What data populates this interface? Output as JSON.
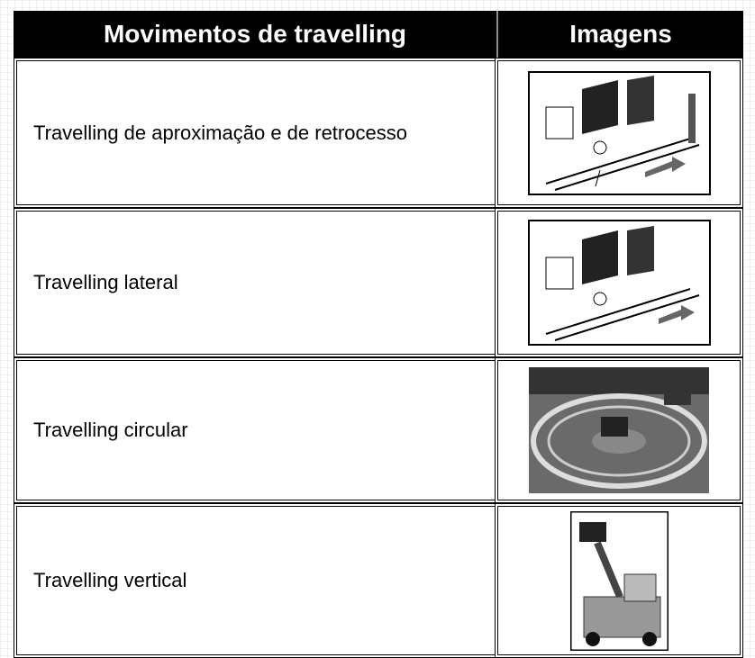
{
  "table": {
    "header": [
      "Movimentos de travelling",
      "Imagens"
    ],
    "rows": [
      [
        "Travelling de aproximação e de retrocesso"
      ],
      [
        "Travelling lateral"
      ],
      [
        "Travelling circular"
      ],
      [
        "Travelling vertical"
      ]
    ]
  }
}
